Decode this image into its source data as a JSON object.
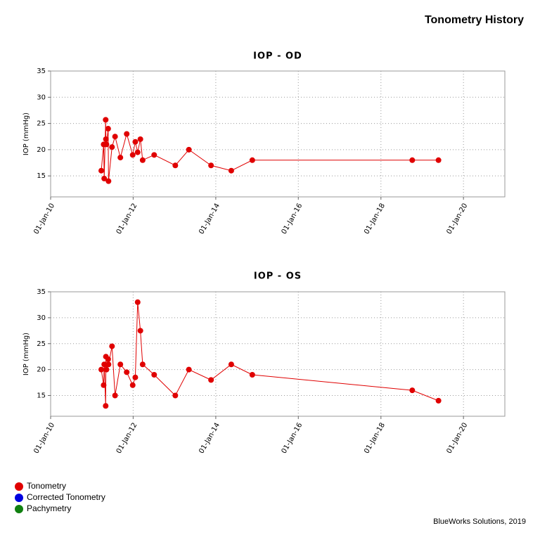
{
  "page": {
    "title": "Tonometry History",
    "footer": "BlueWorks Solutions, 2019"
  },
  "legend": [
    {
      "name": "Tonometry",
      "color": "#e00000"
    },
    {
      "name": "Corrected Tonometry",
      "color": "#0000e0"
    },
    {
      "name": "Pachymetry",
      "color": "#108010"
    }
  ],
  "chart_data": [
    {
      "type": "line",
      "title": "IOP - OD",
      "y_label": "IOP (mmHg)",
      "x": [
        "2011-03-25",
        "2011-04-15",
        "2011-04-20",
        "2011-05-03",
        "2011-05-05",
        "2011-05-10",
        "2011-05-25",
        "2011-05-28",
        "2011-06-28",
        "2011-07-25",
        "2011-09-10",
        "2011-11-05",
        "2011-12-28",
        "2012-01-20",
        "2012-02-10",
        "2012-03-05",
        "2012-03-25",
        "2012-07-05",
        "2013-01-08",
        "2013-05-08",
        "2013-11-20",
        "2014-05-18",
        "2014-11-20",
        "2018-10-05",
        "2019-05-25"
      ],
      "series": [
        {
          "color": "#e00000",
          "values": [
            16,
            21,
            14.5,
            25.7,
            22,
            21,
            24,
            14,
            20.5,
            22.5,
            18.5,
            23,
            19,
            21.5,
            19.5,
            22,
            18,
            19,
            17,
            20,
            17,
            16,
            18,
            18,
            18
          ]
        }
      ],
      "xlim": [
        "2010-01-01",
        "2021-01-01"
      ],
      "xticks": [
        {
          "value": "2010-01-01",
          "label": "01-Jan-10"
        },
        {
          "value": "2012-01-01",
          "label": "01-Jan-12"
        },
        {
          "value": "2014-01-01",
          "label": "01-Jan-14"
        },
        {
          "value": "2016-01-01",
          "label": "01-Jan-16"
        },
        {
          "value": "2018-01-01",
          "label": "01-Jan-18"
        },
        {
          "value": "2020-01-01",
          "label": "01-Jan-20"
        }
      ],
      "ylim": [
        11,
        35
      ],
      "yticks": [
        15,
        20,
        25,
        30,
        35
      ],
      "grid": true
    },
    {
      "type": "line",
      "title": "IOP - OS",
      "y_label": "IOP (mmHg)",
      "x": [
        "2011-03-25",
        "2011-04-15",
        "2011-04-20",
        "2011-05-03",
        "2011-05-05",
        "2011-05-10",
        "2011-05-25",
        "2011-05-28",
        "2011-06-28",
        "2011-07-25",
        "2011-09-10",
        "2011-11-05",
        "2011-12-28",
        "2012-01-20",
        "2012-02-10",
        "2012-03-05",
        "2012-03-25",
        "2012-07-05",
        "2013-01-08",
        "2013-05-08",
        "2013-11-20",
        "2014-05-18",
        "2014-11-20",
        "2018-10-05",
        "2019-05-25"
      ],
      "series": [
        {
          "color": "#e00000",
          "values": [
            20,
            17,
            21,
            13,
            22.5,
            20,
            22,
            21,
            24.5,
            15,
            21,
            19.5,
            17,
            18.5,
            33,
            27.5,
            21,
            19,
            15,
            20,
            18,
            21,
            19,
            16,
            14
          ]
        }
      ],
      "xlim": [
        "2010-01-01",
        "2021-01-01"
      ],
      "xticks": [
        {
          "value": "2010-01-01",
          "label": "01-Jan-10"
        },
        {
          "value": "2012-01-01",
          "label": "01-Jan-12"
        },
        {
          "value": "2014-01-01",
          "label": "01-Jan-14"
        },
        {
          "value": "2016-01-01",
          "label": "01-Jan-16"
        },
        {
          "value": "2018-01-01",
          "label": "01-Jan-18"
        },
        {
          "value": "2020-01-01",
          "label": "01-Jan-20"
        }
      ],
      "ylim": [
        11,
        35
      ],
      "yticks": [
        15,
        20,
        25,
        30,
        35
      ],
      "grid": true
    }
  ]
}
